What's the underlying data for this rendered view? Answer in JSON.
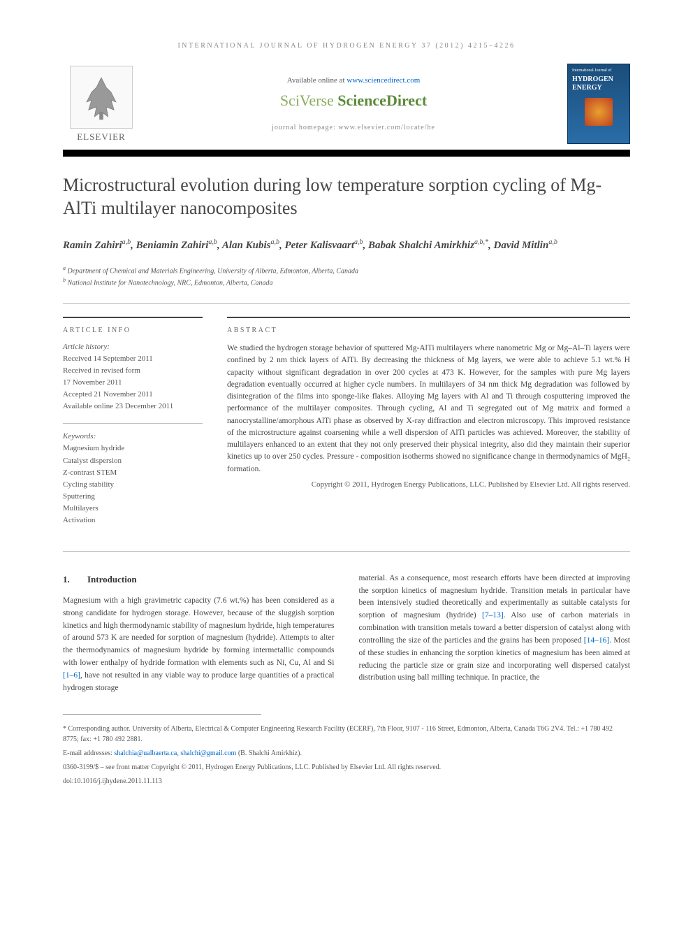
{
  "journal_header": "INTERNATIONAL JOURNAL OF HYDROGEN ENERGY 37 (2012) 4215–4226",
  "elsevier_label": "ELSEVIER",
  "available_online": "Available online at ",
  "available_online_link": "www.sciencedirect.com",
  "sciverse_prefix": "SciVerse ",
  "sciverse_main": "ScienceDirect",
  "homepage_label": "journal homepage: ",
  "homepage_link": "www.elsevier.com/locate/he",
  "cover_issn": "International Journal of",
  "cover_title": "HYDROGEN ENERGY",
  "title": "Microstructural evolution during low temperature sorption cycling of Mg-AlTi multilayer nanocomposites",
  "authors": "Ramin Zahiri",
  "author_list": [
    {
      "name": "Ramin Zahiri",
      "sup": "a,b"
    },
    {
      "name": "Beniamin Zahiri",
      "sup": "a,b"
    },
    {
      "name": "Alan Kubis",
      "sup": "a,b"
    },
    {
      "name": "Peter Kalisvaart",
      "sup": "a,b"
    },
    {
      "name": "Babak Shalchi Amirkhiz",
      "sup": "a,b,*"
    },
    {
      "name": "David Mitlin",
      "sup": "a,b"
    }
  ],
  "affiliations": [
    {
      "sup": "a",
      "text": "Department of Chemical and Materials Engineering, University of Alberta, Edmonton, Alberta, Canada"
    },
    {
      "sup": "b",
      "text": "National Institute for Nanotechnology, NRC, Edmonton, Alberta, Canada"
    }
  ],
  "article_info_header": "ARTICLE INFO",
  "abstract_header": "ABSTRACT",
  "history_label": "Article history:",
  "history": [
    "Received 14 September 2011",
    "Received in revised form",
    "17 November 2011",
    "Accepted 21 November 2011",
    "Available online 23 December 2011"
  ],
  "keywords_label": "Keywords:",
  "keywords": [
    "Magnesium hydride",
    "Catalyst dispersion",
    "Z-contrast STEM",
    "Cycling stability",
    "Sputtering",
    "Multilayers",
    "Activation"
  ],
  "abstract": "We studied the hydrogen storage behavior of sputtered Mg-AlTi multilayers where nanometric Mg or Mg–Al–Ti layers were confined by 2 nm thick layers of AlTi. By decreasing the thickness of Mg layers, we were able to achieve 5.1 wt.% H capacity without significant degradation in over 200 cycles at 473 K. However, for the samples with pure Mg layers degradation eventually occurred at higher cycle numbers. In multilayers of 34 nm thick Mg degradation was followed by disintegration of the films into sponge-like flakes. Alloying Mg layers with Al and Ti through cosputtering improved the performance of the multilayer composites. Through cycling, Al and Ti segregated out of Mg matrix and formed a nanocrystalline/amorphous AlTi phase as observed by X-ray diffraction and electron microscopy. This improved resistance of the microstructure against coarsening while a well dispersion of AlTi particles was achieved. Moreover, the stability of multilayers enhanced to an extent that they not only preserved their physical integrity, also did they maintain their superior kinetics up to over 250 cycles. Pressure - composition isotherms showed no significance change in thermodynamics of MgH₂ formation.",
  "copyright": "Copyright © 2011, Hydrogen Energy Publications, LLC. Published by Elsevier Ltd. All rights reserved.",
  "intro_num": "1.",
  "intro_title": "Introduction",
  "body_col1": "Magnesium with a high gravimetric capacity (7.6 wt.%) has been considered as a strong candidate for hydrogen storage. However, because of the sluggish sorption kinetics and high thermodynamic stability of magnesium hydride, high temperatures of around 573 K are needed for sorption of magnesium (hydride). Attempts to alter the thermodynamics of magnesium hydride by forming intermetallic compounds with lower enthalpy of hydride formation with elements such as Ni, Cu, Al and Si ",
  "body_col1_ref": "[1–6]",
  "body_col1_cont": ", have not resulted in any viable way to produce large quantities of a practical hydrogen storage",
  "body_col2_a": "material. As a consequence, most research efforts have been directed at improving the sorption kinetics of magnesium hydride. Transition metals in particular have been intensively studied theoretically and experimentally as suitable catalysts for sorption of magnesium (hydride) ",
  "body_col2_ref1": "[7–13]",
  "body_col2_b": ". Also use of carbon materials in combination with transition metals toward a better dispersion of catalyst along with controlling the size of the particles and the grains has been proposed ",
  "body_col2_ref2": "[14–16]",
  "body_col2_c": ". Most of these studies in enhancing the sorption kinetics of magnesium has been aimed at reducing the particle size or grain size and incorporating well dispersed catalyst distribution using ball milling technique. In practice, the",
  "corresponding": "* Corresponding author. University of Alberta, Electrical & Computer Engineering Research Facility (ECERF), 7th Floor, 9107 - 116 Street, Edmonton, Alberta, Canada T6G 2V4. Tel.: +1 780 492 8775; fax: +1 780 492 2881.",
  "email_label": "E-mail addresses: ",
  "email1": "shalchia@ualbaerta.ca",
  "email_sep": ", ",
  "email2": "shalchi@gmail.com",
  "email_name": " (B. Shalchi Amirkhiz).",
  "footer_issn": "0360-3199/$ – see front matter Copyright © 2011, Hydrogen Energy Publications, LLC. Published by Elsevier Ltd. All rights reserved.",
  "doi": "doi:10.1016/j.ijhydene.2011.11.113"
}
